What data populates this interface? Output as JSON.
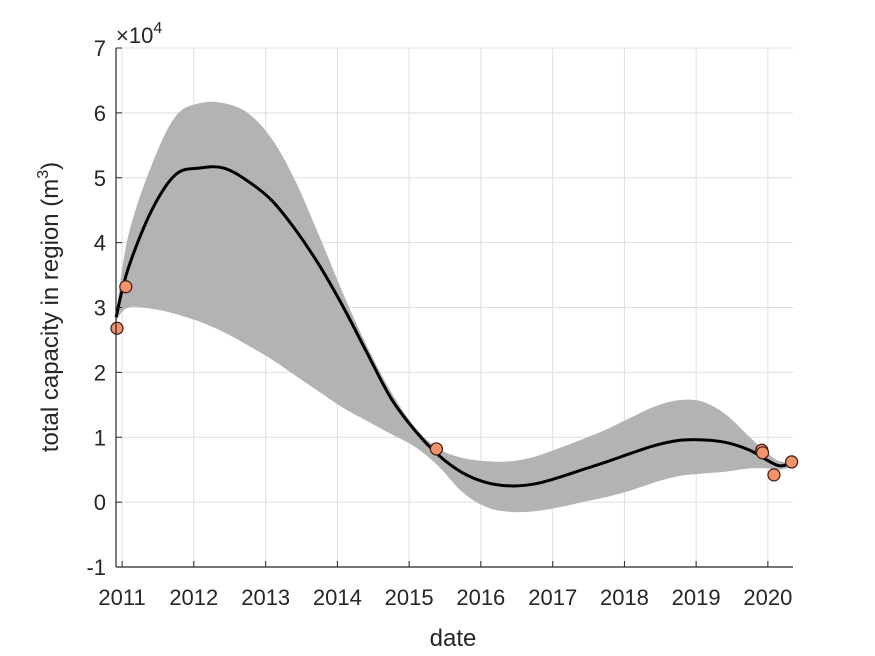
{
  "chart_data": {
    "type": "line",
    "xlabel": "date",
    "ylabel_main": "total capacity in region (m",
    "ylabel_sup": "3",
    "ylabel_close": ")",
    "exponent_prefix": "×10",
    "exponent_power": "4",
    "xlim": [
      "2010-12-01",
      "2020-05-08"
    ],
    "ylim": [
      -1,
      7
    ],
    "x_ticks": [
      {
        "date": "2011-01-01",
        "label": "2011"
      },
      {
        "date": "2012-01-01",
        "label": "2012"
      },
      {
        "date": "2013-01-01",
        "label": "2013"
      },
      {
        "date": "2014-01-01",
        "label": "2014"
      },
      {
        "date": "2015-01-01",
        "label": "2015"
      },
      {
        "date": "2016-01-01",
        "label": "2016"
      },
      {
        "date": "2017-01-01",
        "label": "2017"
      },
      {
        "date": "2018-01-01",
        "label": "2018"
      },
      {
        "date": "2019-01-01",
        "label": "2019"
      },
      {
        "date": "2020-01-01",
        "label": "2020"
      }
    ],
    "y_ticks": [
      {
        "value": -1,
        "label": "-1"
      },
      {
        "value": 0,
        "label": "0"
      },
      {
        "value": 1,
        "label": "1"
      },
      {
        "value": 2,
        "label": "2"
      },
      {
        "value": 3,
        "label": "3"
      },
      {
        "value": 4,
        "label": "4"
      },
      {
        "value": 5,
        "label": "5"
      },
      {
        "value": 6,
        "label": "6"
      },
      {
        "value": 7,
        "label": "7"
      }
    ],
    "grid": true,
    "series": [
      {
        "kind": "fit",
        "color": "#000000",
        "points": [
          [
            "2010-12-01",
            2.85
          ],
          [
            "2011-02-01",
            3.6
          ],
          [
            "2011-06-01",
            4.5
          ],
          [
            "2011-10-01",
            5.05
          ],
          [
            "2012-02-01",
            5.15
          ],
          [
            "2012-06-01",
            5.15
          ],
          [
            "2012-10-01",
            4.95
          ],
          [
            "2013-02-01",
            4.65
          ],
          [
            "2013-06-01",
            4.2
          ],
          [
            "2013-10-01",
            3.65
          ],
          [
            "2014-02-01",
            3.0
          ],
          [
            "2014-06-01",
            2.3
          ],
          [
            "2014-10-01",
            1.6
          ],
          [
            "2015-02-01",
            1.1
          ],
          [
            "2015-06-01",
            0.72
          ],
          [
            "2015-10-01",
            0.45
          ],
          [
            "2016-02-01",
            0.3
          ],
          [
            "2016-06-01",
            0.25
          ],
          [
            "2016-10-01",
            0.28
          ],
          [
            "2017-02-01",
            0.38
          ],
          [
            "2017-06-01",
            0.5
          ],
          [
            "2017-10-01",
            0.62
          ],
          [
            "2018-02-01",
            0.75
          ],
          [
            "2018-06-01",
            0.87
          ],
          [
            "2018-10-01",
            0.95
          ],
          [
            "2019-02-01",
            0.96
          ],
          [
            "2019-06-01",
            0.92
          ],
          [
            "2019-10-01",
            0.8
          ],
          [
            "2020-01-01",
            0.64
          ],
          [
            "2020-03-01",
            0.56
          ],
          [
            "2020-05-01",
            0.6
          ]
        ]
      },
      {
        "kind": "band",
        "color": "#b3b3b3",
        "upper": [
          [
            "2010-12-01",
            2.9
          ],
          [
            "2011-02-01",
            4.1
          ],
          [
            "2011-06-01",
            5.2
          ],
          [
            "2011-10-01",
            5.95
          ],
          [
            "2012-02-01",
            6.15
          ],
          [
            "2012-06-01",
            6.15
          ],
          [
            "2012-10-01",
            6.0
          ],
          [
            "2013-02-01",
            5.6
          ],
          [
            "2013-06-01",
            4.95
          ],
          [
            "2013-10-01",
            4.1
          ],
          [
            "2014-02-01",
            3.2
          ],
          [
            "2014-06-01",
            2.4
          ],
          [
            "2014-10-01",
            1.7
          ],
          [
            "2015-02-01",
            1.15
          ],
          [
            "2015-06-01",
            0.82
          ],
          [
            "2015-10-01",
            0.68
          ],
          [
            "2016-02-01",
            0.63
          ],
          [
            "2016-06-01",
            0.63
          ],
          [
            "2016-10-01",
            0.7
          ],
          [
            "2017-02-01",
            0.83
          ],
          [
            "2017-06-01",
            0.97
          ],
          [
            "2017-10-01",
            1.12
          ],
          [
            "2018-02-01",
            1.3
          ],
          [
            "2018-06-01",
            1.47
          ],
          [
            "2018-10-01",
            1.57
          ],
          [
            "2019-02-01",
            1.55
          ],
          [
            "2019-06-01",
            1.35
          ],
          [
            "2019-10-01",
            1.0
          ],
          [
            "2020-01-01",
            0.75
          ],
          [
            "2020-03-01",
            0.63
          ],
          [
            "2020-05-01",
            0.62
          ]
        ],
        "lower": [
          [
            "2010-12-01",
            2.8
          ],
          [
            "2011-02-01",
            3.0
          ],
          [
            "2011-06-01",
            2.98
          ],
          [
            "2011-10-01",
            2.9
          ],
          [
            "2012-02-01",
            2.78
          ],
          [
            "2012-06-01",
            2.62
          ],
          [
            "2012-10-01",
            2.42
          ],
          [
            "2013-02-01",
            2.2
          ],
          [
            "2013-06-01",
            1.95
          ],
          [
            "2013-10-01",
            1.7
          ],
          [
            "2014-02-01",
            1.45
          ],
          [
            "2014-06-01",
            1.25
          ],
          [
            "2014-10-01",
            1.05
          ],
          [
            "2015-02-01",
            0.85
          ],
          [
            "2015-06-01",
            0.55
          ],
          [
            "2015-10-01",
            0.15
          ],
          [
            "2016-02-01",
            -0.08
          ],
          [
            "2016-06-01",
            -0.15
          ],
          [
            "2016-10-01",
            -0.14
          ],
          [
            "2017-02-01",
            -0.08
          ],
          [
            "2017-06-01",
            0.0
          ],
          [
            "2017-10-01",
            0.08
          ],
          [
            "2018-02-01",
            0.18
          ],
          [
            "2018-06-01",
            0.3
          ],
          [
            "2018-10-01",
            0.4
          ],
          [
            "2019-02-01",
            0.44
          ],
          [
            "2019-06-01",
            0.47
          ],
          [
            "2019-10-01",
            0.52
          ],
          [
            "2020-01-01",
            0.52
          ],
          [
            "2020-03-01",
            0.5
          ],
          [
            "2020-05-01",
            0.55
          ]
        ]
      },
      {
        "kind": "observations",
        "color": "#f4926c",
        "stroke": "#3a1a10",
        "points": [
          [
            "2010-12-06",
            2.68
          ],
          [
            "2011-01-20",
            3.32
          ],
          [
            "2015-05-20",
            0.82
          ],
          [
            "2019-12-01",
            0.8
          ],
          [
            "2019-12-05",
            0.76
          ],
          [
            "2020-02-01",
            0.42
          ],
          [
            "2020-05-01",
            0.62
          ]
        ]
      }
    ]
  }
}
